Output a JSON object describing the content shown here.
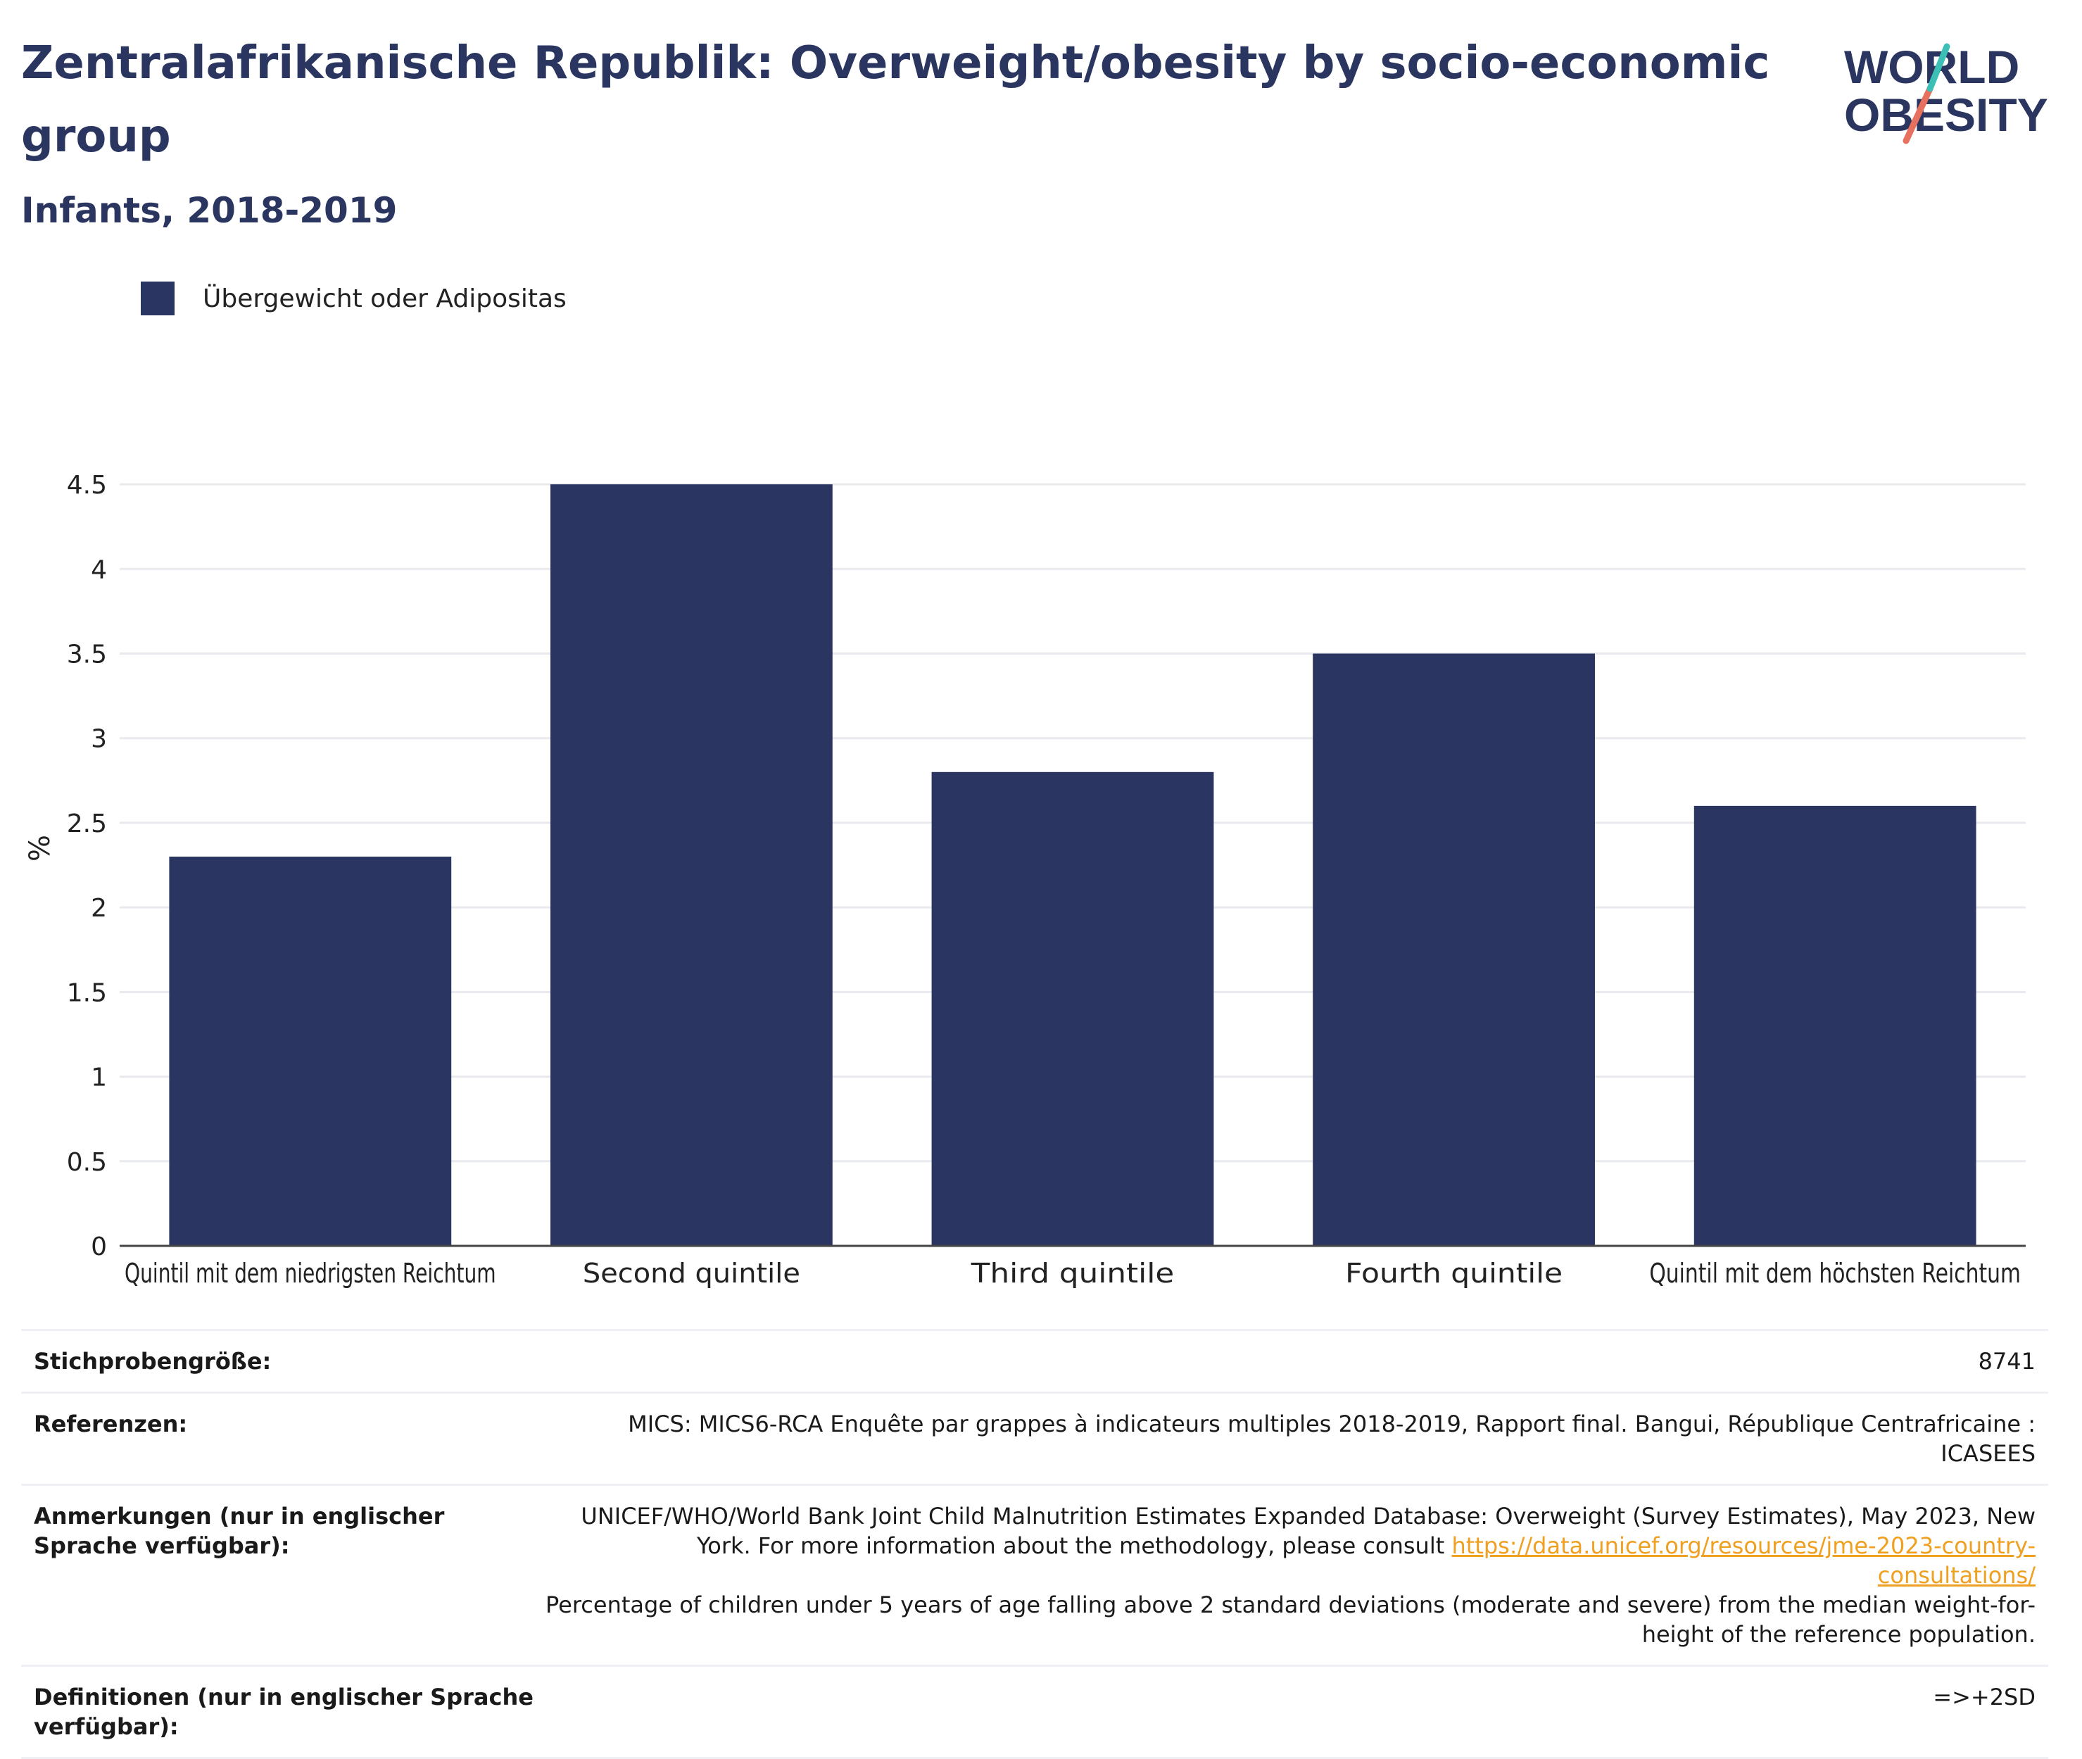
{
  "title": "Zentralafrikanische Republik: Overweight/obesity by socio-economic group",
  "subtitle": "Infants, 2018-2019",
  "logo": {
    "line1": "WORLD",
    "line2": "OBESITY"
  },
  "colors": {
    "bar": "#2a3562",
    "title": "#2a3560",
    "link": "#f0a020",
    "logo_teal": "#3cbfb5",
    "logo_coral": "#e8705f"
  },
  "chart_data": {
    "type": "bar",
    "categories": [
      "Quintil mit dem niedrigsten Reichtum",
      "Second quintile",
      "Third quintile",
      "Fourth quintile",
      "Quintil mit dem höchsten Reichtum"
    ],
    "series": [
      {
        "name": "Übergewicht oder Adipositas",
        "values": [
          2.3,
          4.5,
          2.8,
          3.5,
          2.6
        ]
      }
    ],
    "ylabel": "%",
    "ylim": [
      0,
      4.7
    ],
    "yticks": [
      "0",
      "0.5",
      "1",
      "1.5",
      "2",
      "2.5",
      "3",
      "3.5",
      "4",
      "4.5"
    ],
    "grid": true,
    "legend": "top-left"
  },
  "info": {
    "sample": {
      "label": "Stichprobengröße:",
      "value": "8741"
    },
    "references": {
      "label": "Referenzen:",
      "value": "MICS: MICS6-RCA Enquête par grappes à indicateurs multiples 2018-2019, Rapport final. Bangui, République Centrafricaine : ICASEES"
    },
    "notes": {
      "label": "Anmerkungen (nur in englischer Sprache verfügbar):",
      "text1": "UNICEF/WHO/World Bank Joint Child Malnutrition Estimates Expanded Database: Overweight (Survey Estimates), May 2023, New York. For more information about the methodology, please consult ",
      "link": "https://data.unicef.org/resources/jme-2023-country-consultations/",
      "text2": "Percentage of children under 5 years of age falling above 2 standard deviations (moderate and severe) from the median weight-for-height of the reference population."
    },
    "definitions": {
      "label": "Definitionen (nur in englischer Sprache verfügbar):",
      "value": "=>+2SD"
    }
  }
}
